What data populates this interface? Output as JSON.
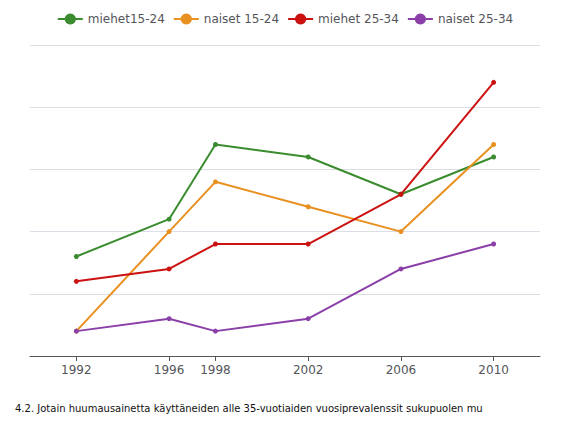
{
  "chart_data": {
    "type": "line",
    "title": "4.2. Jotain huumausainetta käyttäneiden alle 35-vuotiaiden vuosiprevalenssit sukupuolen mu",
    "x": [
      1992,
      1996,
      1998,
      2002,
      2006,
      2010
    ],
    "series": [
      {
        "name": "miehet15-24",
        "color": "#3a8c2f",
        "values": [
          8,
          11,
          17,
          16,
          13,
          16
        ]
      },
      {
        "name": "naiset 15-24",
        "color": "#e89020",
        "values": [
          2,
          10,
          14,
          12,
          10,
          17
        ]
      },
      {
        "name": "miehet 25-34",
        "color": "#cc1111",
        "values": [
          6,
          7,
          9,
          9,
          13,
          22
        ]
      },
      {
        "name": "naiset 25-34",
        "color": "#8b3fa8",
        "values": [
          2,
          3,
          2,
          3,
          7,
          9
        ]
      }
    ],
    "xlim": [
      1990,
      2012
    ],
    "xticks": [
      1992,
      1996,
      1998,
      2002,
      2006,
      2010
    ],
    "ylim": [
      0,
      25
    ],
    "yticks": [
      0,
      5,
      10,
      15,
      20,
      25
    ],
    "grid": true,
    "legend": "top",
    "tick_labels": "x"
  }
}
